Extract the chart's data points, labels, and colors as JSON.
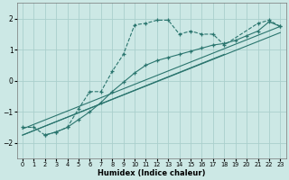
{
  "xlabel": "Humidex (Indice chaleur)",
  "xlim": [
    -0.5,
    23.5
  ],
  "ylim": [
    -2.5,
    2.5
  ],
  "yticks": [
    -2,
    -1,
    0,
    1,
    2
  ],
  "xticks": [
    0,
    1,
    2,
    3,
    4,
    5,
    6,
    7,
    8,
    9,
    10,
    11,
    12,
    13,
    14,
    15,
    16,
    17,
    18,
    19,
    20,
    21,
    22,
    23
  ],
  "bg_color": "#cce8e5",
  "grid_color": "#aacfcc",
  "line_color": "#2a756e",
  "curve1_x": [
    0,
    1,
    2,
    3,
    4,
    5,
    6,
    7,
    8,
    9,
    10,
    11,
    12,
    13,
    14,
    15,
    16,
    17,
    18,
    21,
    22,
    23
  ],
  "curve1_y": [
    -1.5,
    -1.5,
    -1.75,
    -1.65,
    -1.5,
    -0.9,
    -0.35,
    -0.35,
    0.3,
    0.85,
    1.8,
    1.85,
    1.95,
    1.95,
    1.5,
    1.6,
    1.5,
    1.5,
    1.15,
    1.85,
    1.95,
    1.75
  ],
  "curve2_x": [
    2,
    3,
    4,
    5,
    6,
    7,
    8,
    9,
    10,
    11,
    12,
    13,
    14,
    15,
    16,
    17,
    18,
    19,
    20,
    21,
    22,
    23
  ],
  "curve2_y": [
    -1.75,
    -1.65,
    -1.5,
    -1.25,
    -1.0,
    -0.7,
    -0.35,
    -0.05,
    0.25,
    0.5,
    0.65,
    0.75,
    0.85,
    0.95,
    1.05,
    1.15,
    1.2,
    1.3,
    1.45,
    1.6,
    1.9,
    1.75
  ],
  "line1_x": [
    0,
    23
  ],
  "line1_y": [
    -1.55,
    1.75
  ],
  "line2_x": [
    0,
    23
  ],
  "line2_y": [
    -1.75,
    1.55
  ],
  "line3_x": [
    0,
    18
  ],
  "line3_y": [
    -1.75,
    0.85
  ]
}
